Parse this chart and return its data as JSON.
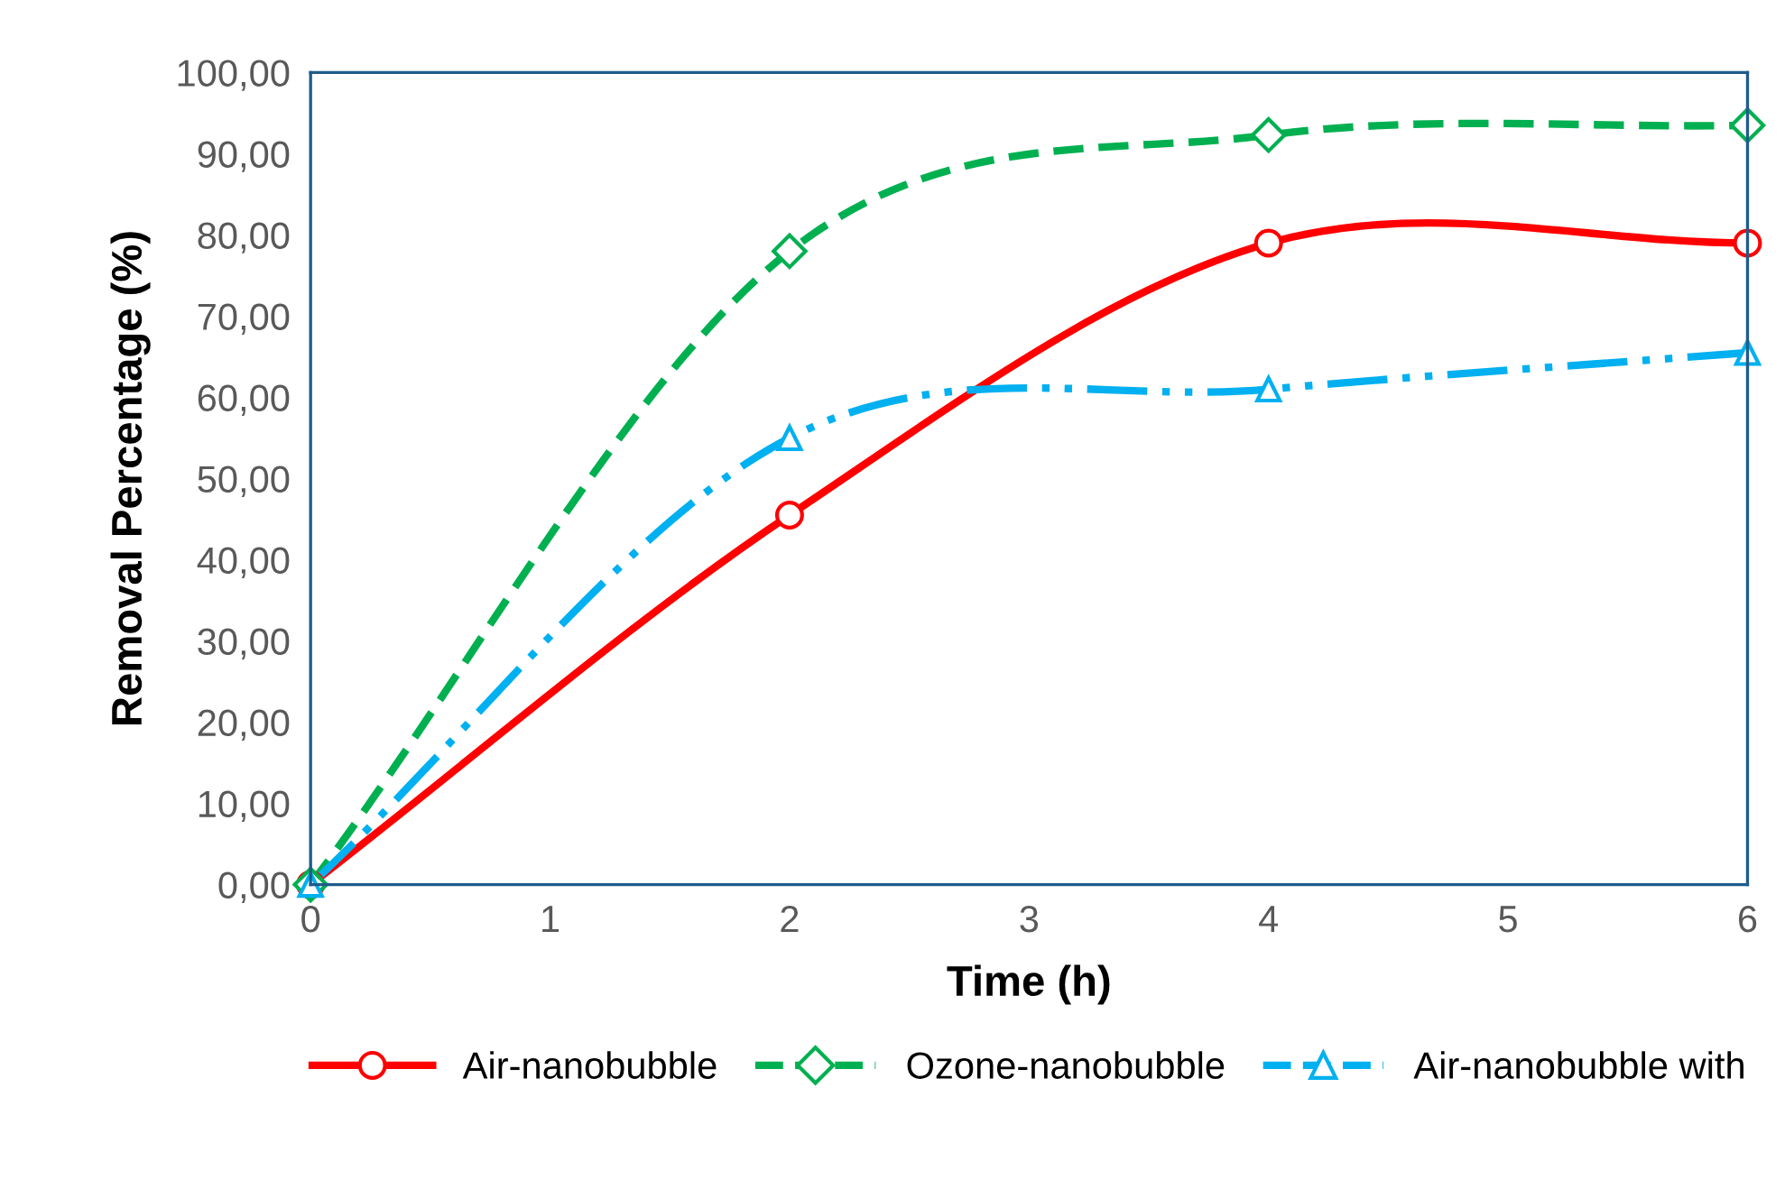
{
  "chart_data": {
    "type": "line",
    "xlabel": "Time (h)",
    "ylabel": "Removal Percentage (%)",
    "x": [
      0,
      2,
      4,
      6
    ],
    "series": [
      {
        "name": "Air-nanobubble",
        "color": "#ff0000",
        "values": [
          0,
          45.5,
          79,
          79
        ],
        "marker": "circle",
        "line_style": "solid"
      },
      {
        "name": "Ozone-nanobubble",
        "color": "#00b050",
        "values": [
          0,
          78,
          92.3,
          93.5
        ],
        "marker": "diamond",
        "line_style": "dashed"
      },
      {
        "name": "Air-nanobubble with",
        "color": "#00b0f0",
        "values": [
          0,
          55,
          61,
          65.5
        ],
        "marker": "triangle",
        "line_style": "dashdot"
      }
    ],
    "xlim": [
      0,
      6
    ],
    "xticks": [
      0,
      1,
      2,
      3,
      4,
      5,
      6
    ],
    "ylim": [
      0,
      100
    ],
    "yticks": [
      {
        "value": 0,
        "label": "0,00"
      },
      {
        "value": 10,
        "label": "10,00"
      },
      {
        "value": 20,
        "label": "20,00"
      },
      {
        "value": 30,
        "label": "30,00"
      },
      {
        "value": 40,
        "label": "40,00"
      },
      {
        "value": 50,
        "label": "50,00"
      },
      {
        "value": 60,
        "label": "60,00"
      },
      {
        "value": 70,
        "label": "70,00"
      },
      {
        "value": 80,
        "label": "80,00"
      },
      {
        "value": 90,
        "label": "90,00"
      },
      {
        "value": 100,
        "label": "100,00"
      }
    ],
    "grid": false,
    "legend": "bottom"
  }
}
